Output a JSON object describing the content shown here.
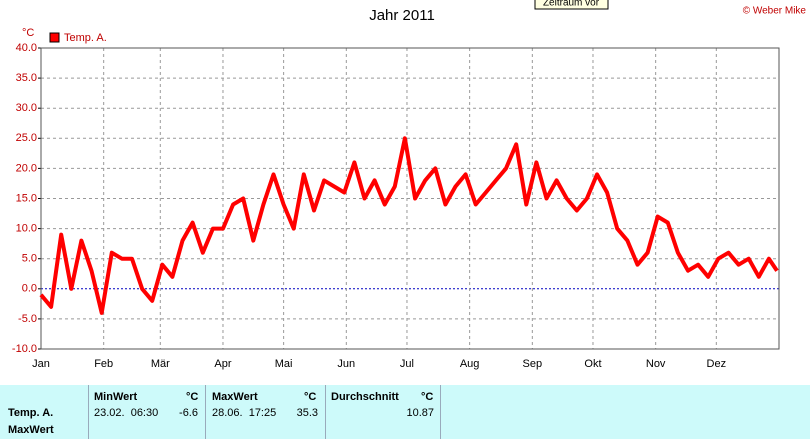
{
  "header": {
    "tooltip": "Zeitraum vor",
    "copyright": "© Weber Mike"
  },
  "chart_data": {
    "type": "line",
    "title": "Jahr 2011",
    "y_unit": "°C",
    "series": [
      {
        "name": "Temp. A.",
        "color": "#ff0000",
        "x": [
          0,
          5,
          10,
          15,
          20,
          25,
          30,
          35,
          40,
          45,
          50,
          55,
          60,
          65,
          70,
          75,
          80,
          85,
          90,
          95,
          100,
          105,
          110,
          115,
          120,
          125,
          130,
          135,
          140,
          145,
          150,
          155,
          160,
          165,
          170,
          175,
          180,
          185,
          190,
          195,
          200,
          205,
          210,
          215,
          220,
          225,
          230,
          235,
          240,
          245,
          250,
          255,
          260,
          265,
          270,
          275,
          280,
          285,
          290,
          295,
          300,
          305,
          310,
          315,
          320,
          325,
          330,
          335,
          340,
          345,
          350,
          355,
          360,
          364
        ],
        "values": [
          -1,
          -3,
          9,
          0,
          8,
          3,
          -4,
          6,
          5,
          5,
          0,
          -2,
          4,
          2,
          8,
          11,
          6,
          10,
          10,
          14,
          15,
          8,
          14,
          19,
          14,
          10,
          19,
          13,
          18,
          17,
          16,
          21,
          15,
          18,
          14,
          17,
          25,
          15,
          18,
          20,
          14,
          17,
          19,
          14,
          16,
          18,
          20,
          24,
          14,
          21,
          15,
          18,
          15,
          13,
          15,
          19,
          16,
          10,
          8,
          4,
          6,
          12,
          11,
          6,
          3,
          4,
          2,
          5,
          6,
          4,
          5,
          2,
          5,
          3
        ]
      }
    ],
    "xlim": [
      0,
      365
    ],
    "xticks": [
      {
        "value": 0,
        "label": "Jan"
      },
      {
        "value": 31,
        "label": "Feb"
      },
      {
        "value": 59,
        "label": "Mär"
      },
      {
        "value": 90,
        "label": "Apr"
      },
      {
        "value": 120,
        "label": "Mai"
      },
      {
        "value": 151,
        "label": "Jun"
      },
      {
        "value": 181,
        "label": "Jul"
      },
      {
        "value": 212,
        "label": "Aug"
      },
      {
        "value": 243,
        "label": "Sep"
      },
      {
        "value": 273,
        "label": "Okt"
      },
      {
        "value": 304,
        "label": "Nov"
      },
      {
        "value": 334,
        "label": "Dez"
      }
    ],
    "ylim": [
      -10,
      40
    ],
    "yticks": [
      {
        "value": -10,
        "label": "-10.0"
      },
      {
        "value": -5,
        "label": "-5.0"
      },
      {
        "value": 0,
        "label": "0.0"
      },
      {
        "value": 5,
        "label": "5.0"
      },
      {
        "value": 10,
        "label": "10.0"
      },
      {
        "value": 15,
        "label": "15.0"
      },
      {
        "value": 20,
        "label": "20.0"
      },
      {
        "value": 25,
        "label": "25.0"
      },
      {
        "value": 30,
        "label": "30.0"
      },
      {
        "value": 35,
        "label": "35.0"
      },
      {
        "value": 40,
        "label": "40.0"
      }
    ],
    "grid": true,
    "legend": "top-left"
  },
  "table": {
    "headers": [
      {
        "name": "MinWert",
        "unit": "°C"
      },
      {
        "name": "MaxWert",
        "unit": "°C"
      },
      {
        "name": "Durchschnitt",
        "unit": "°C"
      }
    ],
    "row_labels": [
      "Temp. A.",
      "MaxWert"
    ],
    "cells": [
      {
        "time": "23.02.  06:30",
        "value": -6.6
      },
      {
        "time": "28.06.  17:25",
        "value": 35.3
      },
      {
        "value": 10.87
      }
    ]
  }
}
